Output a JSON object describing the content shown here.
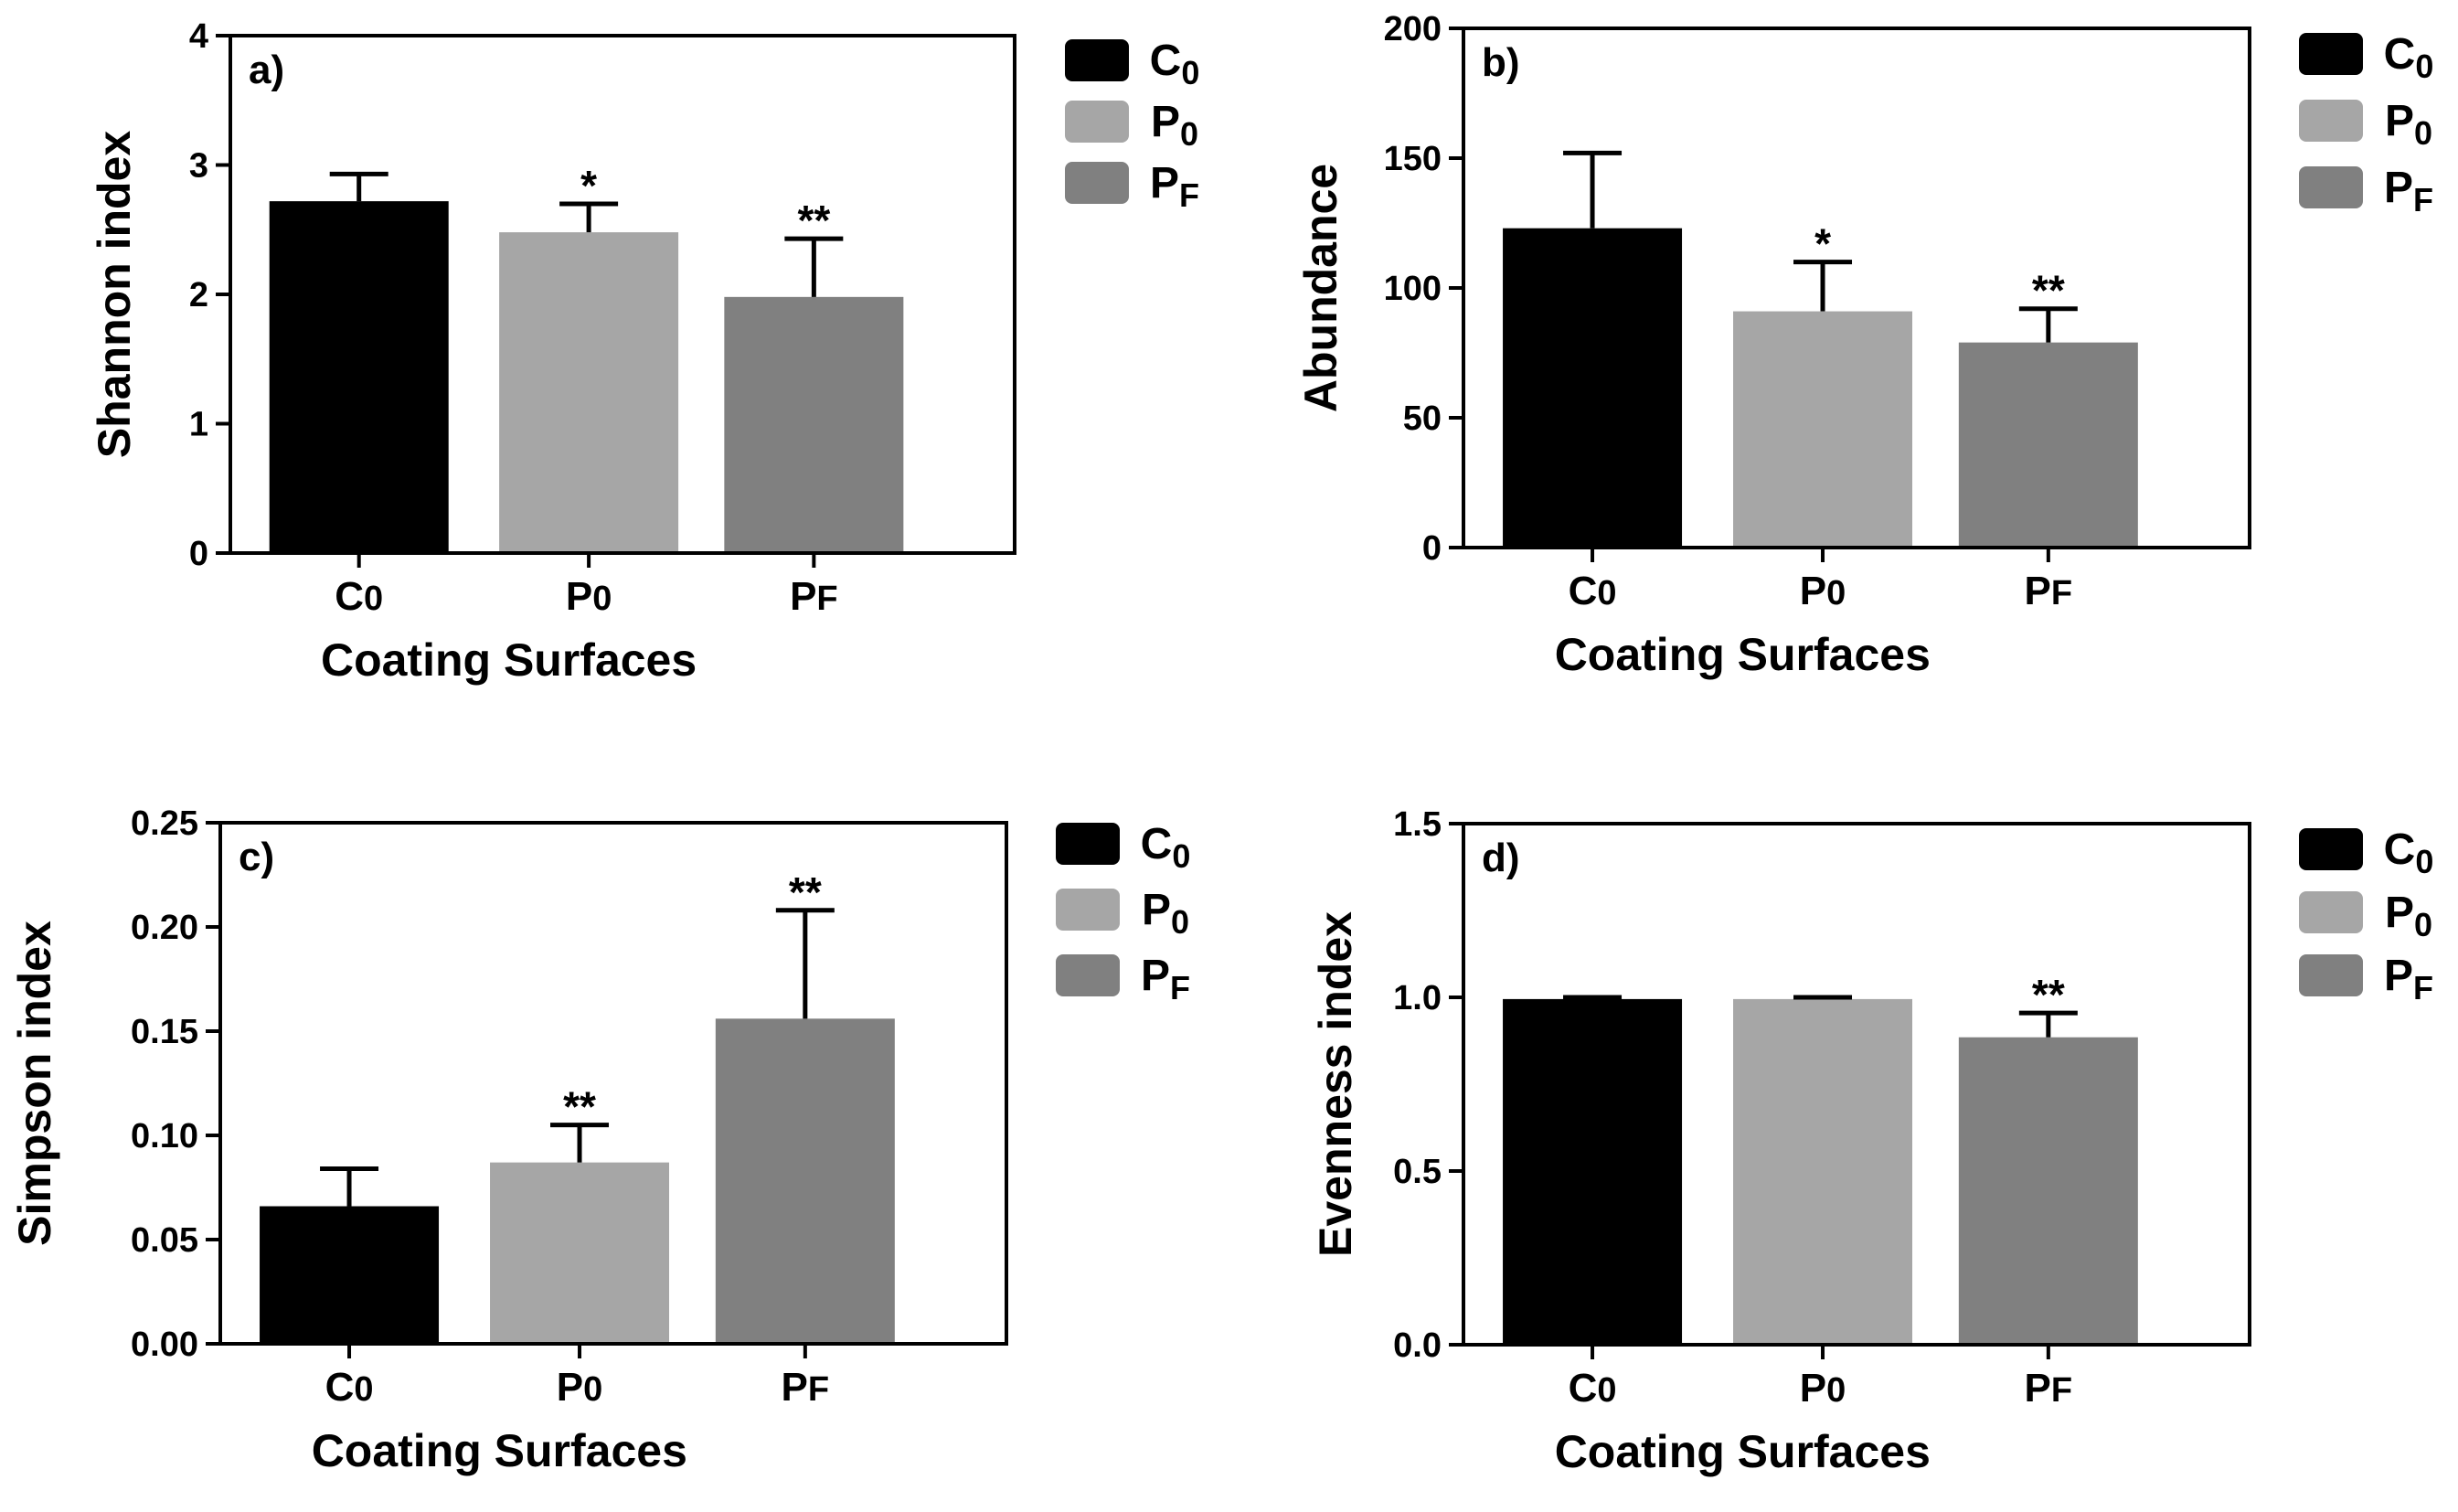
{
  "figure": {
    "category_labels": [
      {
        "main": "C",
        "sub": "0"
      },
      {
        "main": "P",
        "sub": "0"
      },
      {
        "main": "P",
        "sub": "F"
      }
    ],
    "colors": [
      "#000000",
      "#a6a6a6",
      "#808080"
    ]
  },
  "chart_data": [
    {
      "type": "bar",
      "panel_label": "a)",
      "categories": [
        "C0",
        "P0",
        "PF"
      ],
      "values": [
        2.72,
        2.48,
        1.98
      ],
      "errors": [
        0.21,
        0.22,
        0.45
      ],
      "significance": [
        "",
        "*",
        "**"
      ],
      "xlabel": "Coating Surfaces",
      "ylabel": "Shannon index",
      "ylim": [
        0,
        4
      ],
      "yticks": [
        "0",
        "1",
        "2",
        "3",
        "4"
      ],
      "legend": [
        "C0",
        "P0",
        "PF"
      ],
      "legend_position": "right"
    },
    {
      "type": "bar",
      "panel_label": "b)",
      "categories": [
        "C0",
        "P0",
        "PF"
      ],
      "values": [
        123,
        91,
        79
      ],
      "errors": [
        29,
        19,
        13
      ],
      "significance": [
        "",
        "*",
        "**"
      ],
      "xlabel": "Coating Surfaces",
      "ylabel": "Abundance",
      "ylim": [
        0,
        200
      ],
      "yticks": [
        "0",
        "50",
        "100",
        "150",
        "200"
      ],
      "legend": [
        "C0",
        "P0",
        "PF"
      ],
      "legend_position": "right"
    },
    {
      "type": "bar",
      "panel_label": "c)",
      "categories": [
        "C0",
        "P0",
        "PF"
      ],
      "values": [
        0.066,
        0.087,
        0.156
      ],
      "errors": [
        0.018,
        0.018,
        0.052
      ],
      "significance": [
        "",
        "**",
        "**"
      ],
      "xlabel": "Coating Surfaces",
      "ylabel": "Simpson index",
      "ylim": [
        0,
        0.25
      ],
      "yticks": [
        "0.00",
        "0.05",
        "0.10",
        "0.15",
        "0.20",
        "0.25"
      ],
      "legend": [
        "C0",
        "P0",
        "PF"
      ],
      "legend_position": "right"
    },
    {
      "type": "bar",
      "panel_label": "d)",
      "categories": [
        "C0",
        "P0",
        "PF"
      ],
      "values": [
        0.995,
        0.995,
        0.885
      ],
      "errors": [
        0.005,
        0.005,
        0.07
      ],
      "significance": [
        "",
        "",
        "**"
      ],
      "xlabel": "Coating Surfaces",
      "ylabel": "Evenness index",
      "ylim": [
        0,
        1.5
      ],
      "yticks": [
        "0.0",
        "0.5",
        "1.0",
        "1.5"
      ],
      "legend": [
        "C0",
        "P0",
        "PF"
      ],
      "legend_position": "right"
    }
  ]
}
